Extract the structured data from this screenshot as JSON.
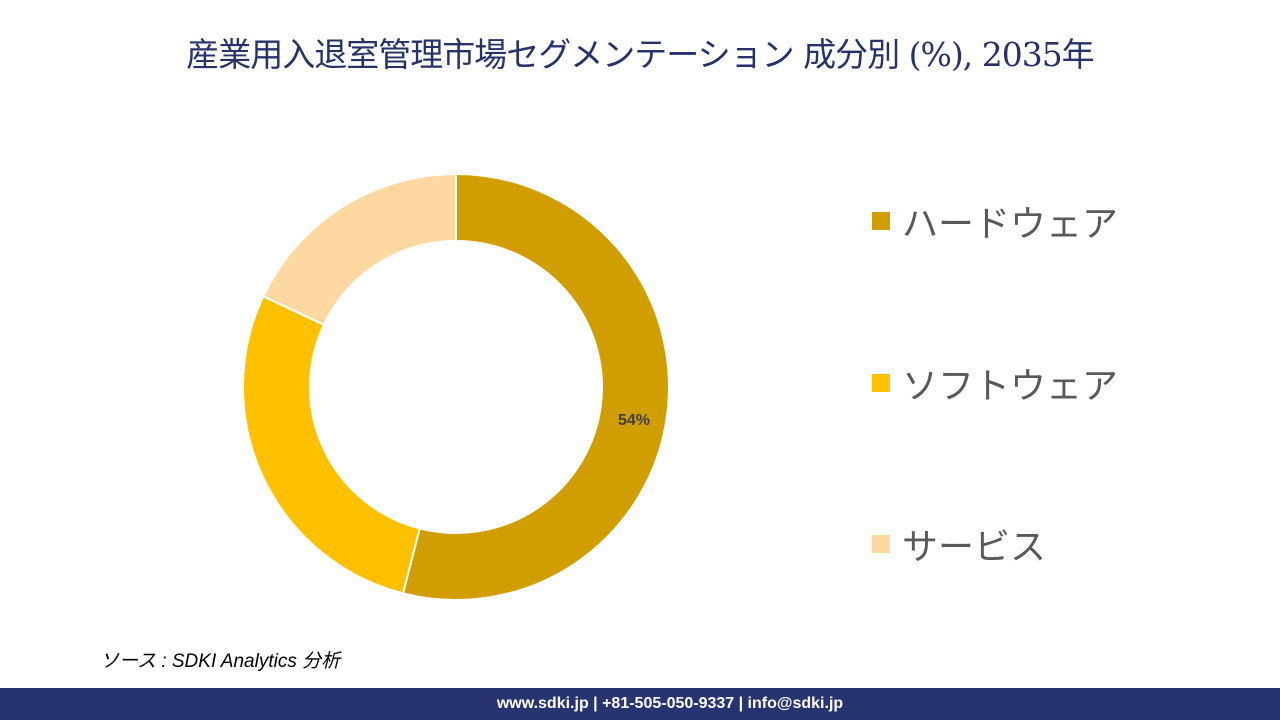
{
  "title": "産業用入退室管理市場セグメンテーション 成分別 (%), 2035年",
  "chart_data": {
    "type": "pie",
    "variant": "donut",
    "title": "産業用入退室管理市場セグメンテーション 成分別 (%), 2035年",
    "categories": [
      "ハードウェア",
      "ソフトウェア",
      "サービス"
    ],
    "values": [
      54,
      28,
      18
    ],
    "data_labels": [
      "54%",
      "",
      ""
    ],
    "colors": [
      "#D09E00",
      "#FFC000",
      "#FDD8A0"
    ],
    "legend_position": "right",
    "start_angle": "top, clockwise"
  },
  "source": "ソース : SDKI Analytics 分析",
  "footer": "www.sdki.jp | +81-505-050-9337 | info@sdki.jp"
}
